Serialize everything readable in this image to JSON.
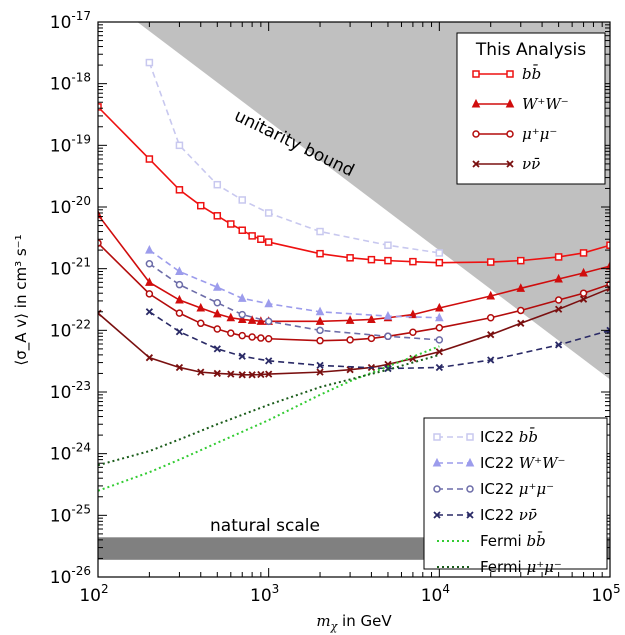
{
  "chart_data": {
    "type": "line",
    "xscale": "log",
    "yscale": "log",
    "xlim": [
      100,
      100000
    ],
    "ylim": [
      1e-26,
      1e-17
    ],
    "xlabel": {
      "var": "m",
      "sub": "χ",
      "rest": " in GeV"
    },
    "ylabel": "⟨σ_A v⟩ in cm³ s⁻¹",
    "x_ticks": [
      {
        "value": 100,
        "base": "10",
        "exp": "2"
      },
      {
        "value": 1000,
        "base": "10",
        "exp": "3"
      },
      {
        "value": 10000,
        "base": "10",
        "exp": "4"
      },
      {
        "value": 100000,
        "base": "10",
        "exp": "5"
      }
    ],
    "y_ticks": [
      {
        "value": 1e-26,
        "base": "10",
        "exp": "-26"
      },
      {
        "value": 1e-25,
        "base": "10",
        "exp": "-25"
      },
      {
        "value": 1e-24,
        "base": "10",
        "exp": "-24"
      },
      {
        "value": 1e-23,
        "base": "10",
        "exp": "-23"
      },
      {
        "value": 1e-22,
        "base": "10",
        "exp": "-22"
      },
      {
        "value": 1e-21,
        "base": "10",
        "exp": "-21"
      },
      {
        "value": 1e-20,
        "base": "10",
        "exp": "-20"
      },
      {
        "value": 1e-19,
        "base": "10",
        "exp": "-19"
      },
      {
        "value": 1e-18,
        "base": "10",
        "exp": "-18"
      },
      {
        "value": 1e-17,
        "base": "10",
        "exp": "-17"
      }
    ],
    "regions": [
      {
        "name": "unitarity bound",
        "label": "unitarity bound",
        "color": "#c0c0c0",
        "boundary": [
          [
            170,
            1e-17
          ],
          [
            100000,
            1.6e-23
          ]
        ]
      },
      {
        "name": "natural scale",
        "label": "natural scale",
        "color": "#808080",
        "y_range": [
          1.9e-26,
          4.4e-26
        ]
      }
    ],
    "legends": [
      {
        "title": "This Analysis",
        "position": "top-right",
        "entries": [
          {
            "label_main": "bb̄",
            "series": 0
          },
          {
            "label_main": "W⁺W⁻",
            "series": 1
          },
          {
            "label_main": "μ⁺μ⁻",
            "series": 2
          },
          {
            "label_main": "νν̄",
            "series": 3
          }
        ]
      },
      {
        "title": "",
        "position": "lower-right",
        "entries": [
          {
            "label_prefix": "IC22 ",
            "label_main": "bb̄",
            "series": 4
          },
          {
            "label_prefix": "IC22 ",
            "label_main": "W⁺W⁻",
            "series": 5
          },
          {
            "label_prefix": "IC22 ",
            "label_main": "μ⁺μ⁻",
            "series": 6
          },
          {
            "label_prefix": "IC22 ",
            "label_main": "νν̄",
            "series": 7
          },
          {
            "label_prefix": "Fermi ",
            "label_main": "bb̄",
            "series": 8
          },
          {
            "label_prefix": "Fermi ",
            "label_main": "μ⁺μ⁻",
            "series": 9
          }
        ]
      }
    ],
    "series": [
      {
        "name": "bb̄",
        "color": "#ee1111",
        "dash": "solid",
        "marker": "square",
        "x": [
          100,
          200,
          300,
          400,
          500,
          600,
          700,
          800,
          900,
          1000,
          2000,
          3000,
          4000,
          5000,
          7000,
          10000,
          20000,
          30000,
          50000,
          70000,
          100000
        ],
        "y": [
          4.2e-19,
          6e-20,
          1.9e-20,
          1.05e-20,
          7.2e-21,
          5.3e-21,
          4.2e-21,
          3.4e-21,
          3e-21,
          2.7e-21,
          1.75e-21,
          1.5e-21,
          1.4e-21,
          1.35e-21,
          1.3e-21,
          1.25e-21,
          1.28e-21,
          1.35e-21,
          1.55e-21,
          1.8e-21,
          2.4e-21
        ]
      },
      {
        "name": "W⁺W⁻",
        "color": "#d00d0d",
        "dash": "solid",
        "marker": "triangle",
        "x": [
          100,
          200,
          300,
          400,
          500,
          600,
          700,
          800,
          900,
          1000,
          2000,
          3000,
          4000,
          5000,
          7000,
          10000,
          20000,
          30000,
          50000,
          70000,
          100000
        ],
        "y": [
          7.5e-21,
          6e-22,
          3.1e-22,
          2.3e-22,
          1.85e-22,
          1.6e-22,
          1.5e-22,
          1.45e-22,
          1.4e-22,
          1.4e-22,
          1.4e-22,
          1.45e-22,
          1.5e-22,
          1.6e-22,
          1.8e-22,
          2.3e-22,
          3.6e-22,
          4.8e-22,
          6.8e-22,
          8.5e-22,
          1.1e-21
        ]
      },
      {
        "name": "μ⁺μ⁻",
        "color": "#b30c0c",
        "dash": "solid",
        "marker": "circle",
        "x": [
          100,
          200,
          300,
          400,
          500,
          600,
          700,
          800,
          900,
          1000,
          2000,
          3000,
          4000,
          5000,
          7000,
          10000,
          20000,
          30000,
          50000,
          70000,
          100000
        ],
        "y": [
          2.6e-21,
          3.9e-22,
          1.9e-22,
          1.3e-22,
          1.05e-22,
          9e-23,
          8.2e-23,
          7.8e-23,
          7.5e-23,
          7.3e-23,
          6.8e-23,
          7e-23,
          7.4e-23,
          8e-23,
          9.3e-23,
          1.1e-22,
          1.6e-22,
          2.1e-22,
          3.1e-22,
          4e-22,
          5.6e-22
        ]
      },
      {
        "name": "νν̄",
        "color": "#7a1010",
        "dash": "solid",
        "marker": "x",
        "x": [
          100,
          200,
          300,
          400,
          500,
          600,
          700,
          800,
          900,
          1000,
          2000,
          3000,
          4000,
          5000,
          7000,
          10000,
          20000,
          30000,
          50000,
          70000,
          100000
        ],
        "y": [
          1.9e-22,
          3.6e-23,
          2.5e-23,
          2.1e-23,
          2e-23,
          1.95e-23,
          1.9e-23,
          1.9e-23,
          1.92e-23,
          1.95e-23,
          2.1e-23,
          2.3e-23,
          2.5e-23,
          2.8e-23,
          3.5e-23,
          4.5e-23,
          8.5e-23,
          1.3e-22,
          2.2e-22,
          3.2e-22,
          4.8e-22
        ]
      },
      {
        "name": "IC22 bb̄",
        "color": "#c8c8ef",
        "dash": "dashed",
        "marker": "square",
        "x": [
          200,
          300,
          500,
          700,
          1000,
          2000,
          5000,
          10000
        ],
        "y": [
          2.2e-18,
          1e-19,
          2.3e-20,
          1.3e-20,
          8e-21,
          4e-21,
          2.4e-21,
          1.8e-21
        ]
      },
      {
        "name": "IC22 W⁺W⁻",
        "color": "#9c9cec",
        "dash": "dashed",
        "marker": "triangle",
        "x": [
          200,
          300,
          500,
          700,
          1000,
          2000,
          5000,
          10000
        ],
        "y": [
          2e-21,
          9e-22,
          5e-22,
          3.3e-22,
          2.7e-22,
          2e-22,
          1.7e-22,
          1.6e-22
        ]
      },
      {
        "name": "IC22 μ⁺μ⁻",
        "color": "#6c6ca8",
        "dash": "dashed",
        "marker": "circle",
        "x": [
          200,
          300,
          500,
          700,
          1000,
          2000,
          5000,
          10000
        ],
        "y": [
          1.2e-21,
          5.5e-22,
          2.8e-22,
          1.8e-22,
          1.4e-22,
          1e-22,
          8e-23,
          7e-23
        ]
      },
      {
        "name": "IC22 νν̄",
        "color": "#2a2a66",
        "dash": "dashed",
        "marker": "x",
        "x": [
          200,
          300,
          500,
          700,
          1000,
          2000,
          5000,
          10000,
          20000,
          50000,
          100000
        ],
        "y": [
          2e-22,
          9.5e-23,
          5e-23,
          3.8e-23,
          3.2e-23,
          2.7e-23,
          2.4e-23,
          2.5e-23,
          3.3e-23,
          5.8e-23,
          1e-22
        ]
      },
      {
        "name": "Fermi bb̄",
        "color": "#33cc33",
        "dash": "dotted",
        "marker": "none",
        "x": [
          100,
          200,
          300,
          500,
          1000,
          2000,
          3000,
          5000,
          10000
        ],
        "y": [
          2.5e-25,
          5e-25,
          8e-25,
          1.5e-24,
          3.5e-24,
          9e-24,
          1.5e-23,
          2.6e-23,
          5.5e-23
        ]
      },
      {
        "name": "Fermi μ⁺μ⁻",
        "color": "#1a5c1a",
        "dash": "dotted",
        "marker": "none",
        "x": [
          100,
          200,
          300,
          500,
          1000,
          2000,
          3000,
          5000,
          10000
        ],
        "y": [
          6.5e-25,
          1.1e-24,
          1.7e-24,
          3e-24,
          6.2e-24,
          1.2e-23,
          1.6e-23,
          2.3e-23,
          4e-23
        ]
      }
    ]
  }
}
